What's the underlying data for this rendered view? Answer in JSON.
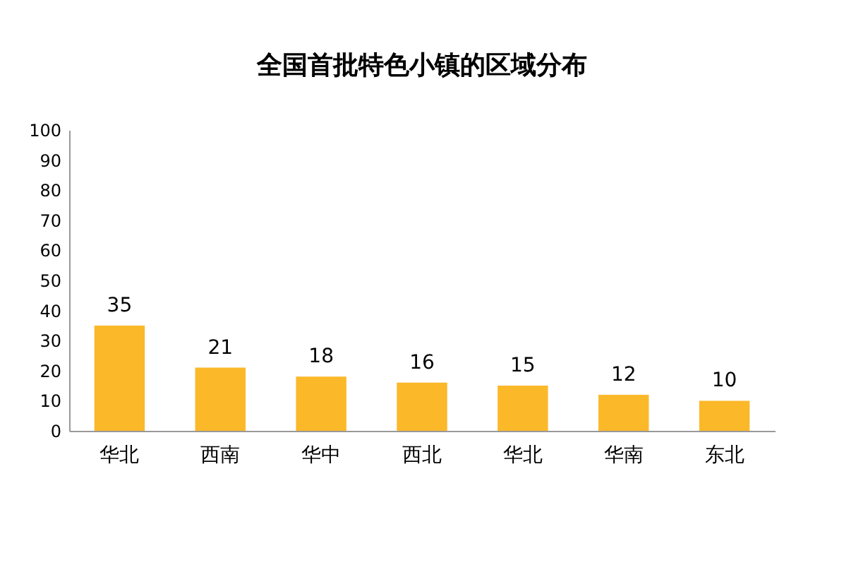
{
  "chart_data": {
    "type": "bar",
    "title": "全国首批特色小镇的区域分布",
    "categories": [
      "华北",
      "西南",
      "华中",
      "西北",
      "华北",
      "华南",
      "东北"
    ],
    "values": [
      35,
      21,
      18,
      16,
      15,
      12,
      10
    ],
    "color": "#fbb829",
    "ylim": [
      0,
      100
    ],
    "yticks": [
      0,
      10,
      20,
      30,
      40,
      50,
      60,
      70,
      80,
      90,
      100
    ],
    "grid": false,
    "data_labels": true
  }
}
